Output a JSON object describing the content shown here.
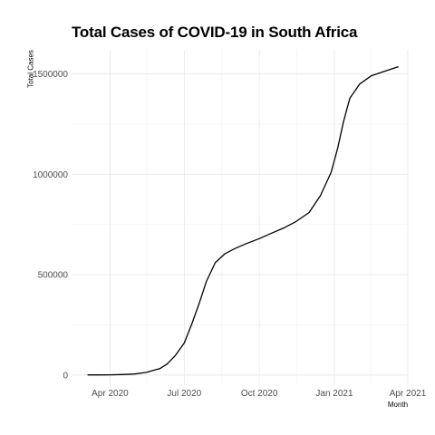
{
  "chart_data": {
    "type": "line",
    "title": "Total Cases of COVID-19 in South Africa",
    "xlabel": "Month",
    "ylabel": "Total Cases",
    "x_ticks": [
      "Apr 2020",
      "Jul 2020",
      "Oct 2020",
      "Jan 2021",
      "Apr 2021"
    ],
    "y_ticks": [
      "0",
      "500000",
      "1000000",
      "1500000"
    ],
    "y_tick_values": [
      0,
      500000,
      1000000,
      1500000
    ],
    "grid": true,
    "ylim": [
      -50000,
      1620000
    ],
    "xlim": [
      "2020-02-15",
      "2021-04-01"
    ],
    "series": [
      {
        "color": "#000000",
        "points": [
          [
            "2020-03-05",
            1000
          ],
          [
            "2020-03-20",
            1200
          ],
          [
            "2020-04-01",
            1400
          ],
          [
            "2020-04-15",
            2600
          ],
          [
            "2020-05-01",
            5600
          ],
          [
            "2020-05-15",
            13000
          ],
          [
            "2020-06-01",
            32000
          ],
          [
            "2020-06-10",
            55000
          ],
          [
            "2020-06-20",
            97000
          ],
          [
            "2020-07-01",
            160000
          ],
          [
            "2020-07-10",
            252000
          ],
          [
            "2020-07-20",
            365000
          ],
          [
            "2020-07-28",
            465000
          ],
          [
            "2020-08-08",
            560000
          ],
          [
            "2020-08-20",
            605000
          ],
          [
            "2020-09-01",
            630000
          ],
          [
            "2020-09-15",
            655000
          ],
          [
            "2020-10-01",
            680000
          ],
          [
            "2020-10-15",
            705000
          ],
          [
            "2020-11-01",
            735000
          ],
          [
            "2020-11-15",
            765000
          ],
          [
            "2020-12-01",
            810000
          ],
          [
            "2020-12-15",
            895000
          ],
          [
            "2020-12-28",
            1010000
          ],
          [
            "2021-01-05",
            1130000
          ],
          [
            "2021-01-12",
            1260000
          ],
          [
            "2021-01-20",
            1380000
          ],
          [
            "2021-02-01",
            1450000
          ],
          [
            "2021-02-15",
            1490000
          ],
          [
            "2021-03-01",
            1510000
          ],
          [
            "2021-03-20",
            1535000
          ]
        ]
      }
    ]
  }
}
